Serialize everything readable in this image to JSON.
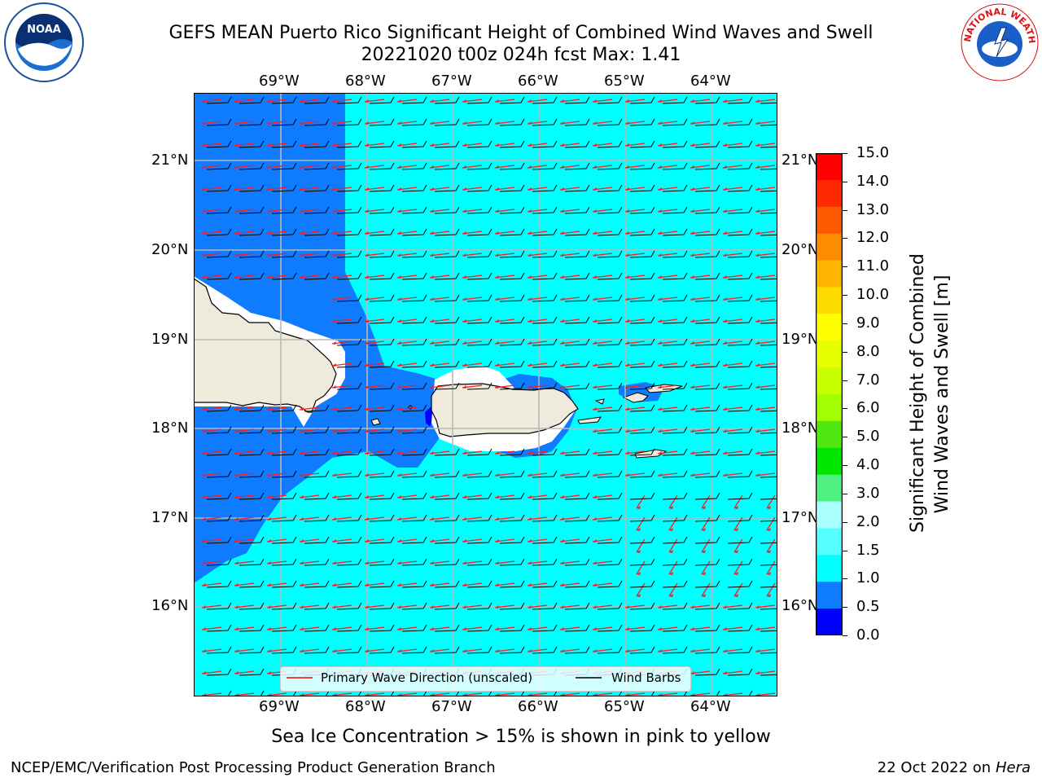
{
  "header": {
    "title": "GEFS MEAN Puerto Rico Significant Height of Combined Wind Waves and Swell",
    "subtitle": "20221020 t00z 024h fcst   Max: 1.41"
  },
  "logos": {
    "left": {
      "name": "NOAA",
      "ring_text": "NATIONAL OCEANIC AND ATMOSPHERIC ADMINISTRATION · U.S. DEPARTMENT OF COMMERCE"
    },
    "right": {
      "name": "NATIONAL WEATHER SERVICE"
    }
  },
  "map": {
    "lon_labels": [
      "69°W",
      "68°W",
      "67°W",
      "66°W",
      "65°W",
      "64°W"
    ],
    "lat_labels": [
      "21°N",
      "20°N",
      "19°N",
      "18°N",
      "17°N",
      "16°N"
    ],
    "land_color": "#efebdc",
    "ocean_colors": {
      "0.5-1.0": "#0f7bff",
      "1.0-1.5": "#00ffff"
    },
    "legend": {
      "wave_direction": "Primary Wave Direction (unscaled)",
      "wind_barbs": "Wind Barbs"
    }
  },
  "colorbar": {
    "label_line1": "Significant Height of Combined",
    "label_line2": "Wind Waves and Swell [m]",
    "ticks": [
      "15.0",
      "14.0",
      "13.0",
      "12.0",
      "11.0",
      "10.0",
      "9.0",
      "8.0",
      "7.0",
      "6.0",
      "5.0",
      "4.0",
      "3.0",
      "2.0",
      "1.5",
      "1.0",
      "0.5",
      "0.0"
    ],
    "colors_top_to_bottom": [
      "#ff0000",
      "#ff2800",
      "#ff5a00",
      "#ff8c00",
      "#ffb400",
      "#ffdc00",
      "#ffff00",
      "#e6ff00",
      "#c8ff00",
      "#a0ff00",
      "#50e610",
      "#00e600",
      "#50f080",
      "#aaffff",
      "#55ffff",
      "#00ffff",
      "#0f7bff",
      "#0000ff"
    ]
  },
  "notes": {
    "ice": "Sea Ice Concentration > 15% is shown in pink to yellow"
  },
  "footer": {
    "left": "NCEP/EMC/Verification Post Processing Product Generation Branch",
    "right_date": "22 Oct 2022 on ",
    "right_host": "Hera"
  }
}
